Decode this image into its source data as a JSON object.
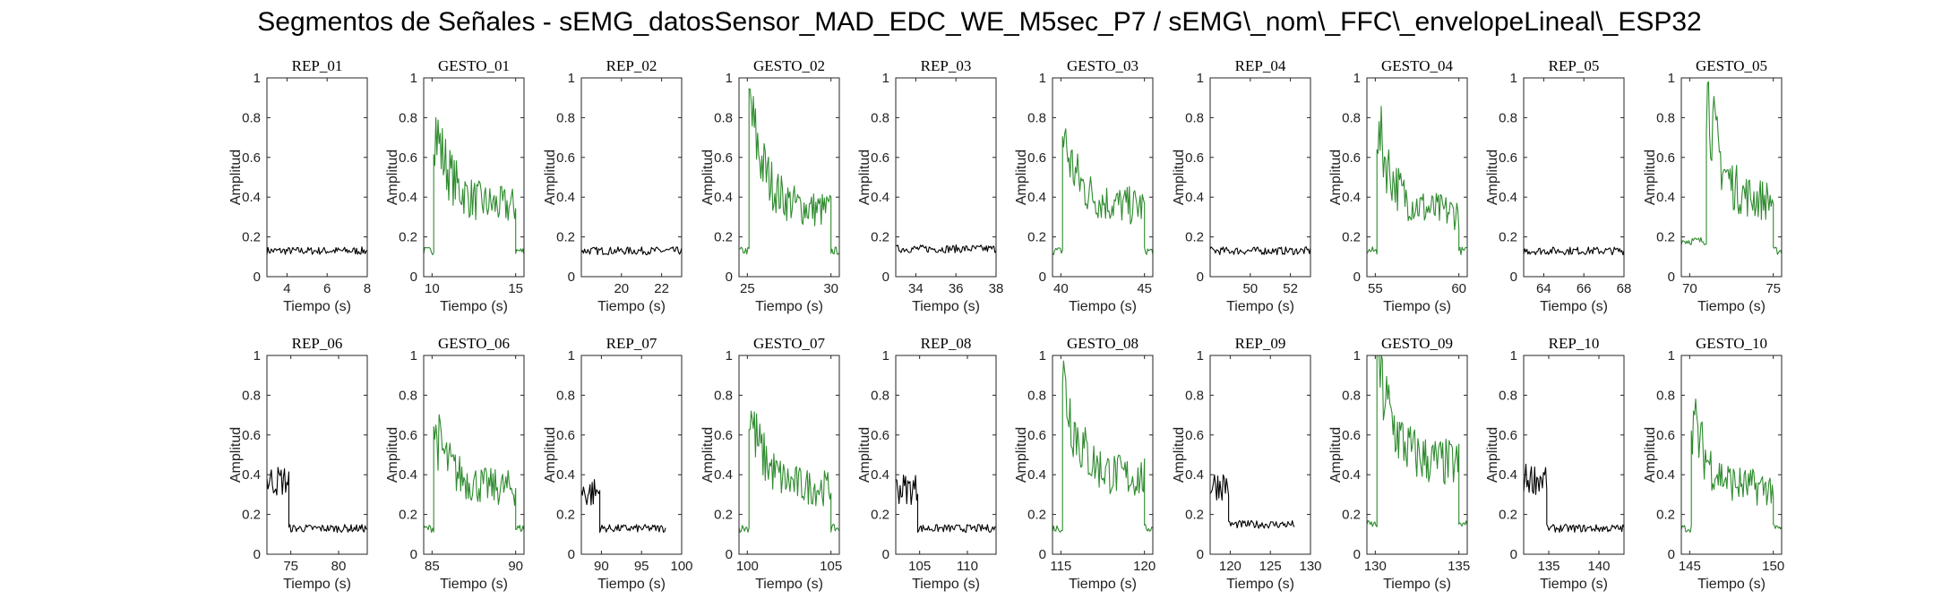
{
  "figure_title": "Segmentos de Señales - sEMG_datosSensor_MAD_EDC_WE_M5sec_P7 / sEMG\\_nom\\_FFC\\_envelopeLineal\\_ESP32",
  "colors": {
    "rest": "#000000",
    "gesture": "#2e8b2e",
    "axes": "#262626"
  },
  "chart_data": [
    {
      "type": "line",
      "title": "REP_01",
      "xlabel": "Tiempo (s)",
      "ylabel": "Amplitud",
      "xlim": [
        3,
        8
      ],
      "ylim": [
        0,
        1
      ],
      "xticks": [
        4,
        6,
        8
      ],
      "yticks": [
        0,
        0.2,
        0.4,
        0.6,
        0.8,
        1
      ],
      "series": [
        {
          "kind": "rest",
          "segments": [
            {
              "t0": 3,
              "t1": 8,
              "level": 0.13
            }
          ]
        }
      ]
    },
    {
      "type": "line",
      "title": "GESTO_01",
      "xlabel": "Tiempo (s)",
      "ylabel": "Amplitud",
      "xlim": [
        9.5,
        15.5
      ],
      "ylim": [
        0,
        1
      ],
      "xticks": [
        10,
        15
      ],
      "yticks": [
        0,
        0.2,
        0.4,
        0.6,
        0.8,
        1
      ],
      "series": [
        {
          "kind": "gesture",
          "segments": [
            {
              "t0": 9.5,
              "t1": 10.1,
              "level": 0.13
            },
            {
              "t0": 10.1,
              "t1": 15,
              "level": 0.35,
              "peak": 0.8
            },
            {
              "t0": 15,
              "t1": 15.5,
              "level": 0.13
            }
          ]
        }
      ]
    },
    {
      "type": "line",
      "title": "REP_02",
      "xlabel": "Tiempo (s)",
      "ylabel": "Amplitud",
      "xlim": [
        18,
        23
      ],
      "ylim": [
        0,
        1
      ],
      "xticks": [
        20,
        22
      ],
      "yticks": [
        0,
        0.2,
        0.4,
        0.6,
        0.8,
        1
      ],
      "series": [
        {
          "kind": "rest",
          "segments": [
            {
              "t0": 18,
              "t1": 23,
              "level": 0.13
            }
          ]
        }
      ]
    },
    {
      "type": "line",
      "title": "GESTO_02",
      "xlabel": "Tiempo (s)",
      "ylabel": "Amplitud",
      "xlim": [
        24.5,
        30.5
      ],
      "ylim": [
        0,
        1
      ],
      "xticks": [
        25,
        30
      ],
      "yticks": [
        0,
        0.2,
        0.4,
        0.6,
        0.8,
        1
      ],
      "series": [
        {
          "kind": "gesture",
          "segments": [
            {
              "t0": 24.5,
              "t1": 25.1,
              "level": 0.13
            },
            {
              "t0": 25.1,
              "t1": 30,
              "level": 0.33,
              "peak": 0.88
            },
            {
              "t0": 30,
              "t1": 30.5,
              "level": 0.13
            }
          ]
        }
      ]
    },
    {
      "type": "line",
      "title": "REP_03",
      "xlabel": "Tiempo (s)",
      "ylabel": "Amplitud",
      "xlim": [
        33,
        38
      ],
      "ylim": [
        0,
        1
      ],
      "xticks": [
        34,
        36,
        38
      ],
      "yticks": [
        0,
        0.2,
        0.4,
        0.6,
        0.8,
        1
      ],
      "series": [
        {
          "kind": "rest",
          "segments": [
            {
              "t0": 33,
              "t1": 38,
              "level": 0.14
            }
          ]
        }
      ]
    },
    {
      "type": "line",
      "title": "GESTO_03",
      "xlabel": "Tiempo (s)",
      "ylabel": "Amplitud",
      "xlim": [
        39.5,
        45.5
      ],
      "ylim": [
        0,
        1
      ],
      "xticks": [
        40,
        45
      ],
      "yticks": [
        0,
        0.2,
        0.4,
        0.6,
        0.8,
        1
      ],
      "series": [
        {
          "kind": "gesture",
          "segments": [
            {
              "t0": 39.5,
              "t1": 40.1,
              "level": 0.13
            },
            {
              "t0": 40.1,
              "t1": 45,
              "level": 0.35,
              "peak": 0.72
            },
            {
              "t0": 45,
              "t1": 45.5,
              "level": 0.13
            }
          ]
        }
      ]
    },
    {
      "type": "line",
      "title": "REP_04",
      "xlabel": "Tiempo (s)",
      "ylabel": "Amplitud",
      "xlim": [
        48,
        53
      ],
      "ylim": [
        0,
        1
      ],
      "xticks": [
        50,
        52
      ],
      "yticks": [
        0,
        0.2,
        0.4,
        0.6,
        0.8,
        1
      ],
      "series": [
        {
          "kind": "rest",
          "segments": [
            {
              "t0": 48,
              "t1": 53,
              "level": 0.13
            }
          ]
        }
      ]
    },
    {
      "type": "line",
      "title": "GESTO_04",
      "xlabel": "Tiempo (s)",
      "ylabel": "Amplitud",
      "xlim": [
        54.5,
        60.5
      ],
      "ylim": [
        0,
        1
      ],
      "xticks": [
        55,
        60
      ],
      "yticks": [
        0,
        0.2,
        0.4,
        0.6,
        0.8,
        1
      ],
      "series": [
        {
          "kind": "gesture",
          "segments": [
            {
              "t0": 54.5,
              "t1": 55.1,
              "level": 0.13
            },
            {
              "t0": 55.1,
              "t1": 60,
              "level": 0.32,
              "peak": 0.78
            },
            {
              "t0": 60,
              "t1": 60.5,
              "level": 0.13
            }
          ]
        }
      ]
    },
    {
      "type": "line",
      "title": "REP_05",
      "xlabel": "Tiempo (s)",
      "ylabel": "Amplitud",
      "xlim": [
        63,
        68
      ],
      "ylim": [
        0,
        1
      ],
      "xticks": [
        64,
        66,
        68
      ],
      "yticks": [
        0,
        0.2,
        0.4,
        0.6,
        0.8,
        1
      ],
      "series": [
        {
          "kind": "rest",
          "segments": [
            {
              "t0": 63,
              "t1": 68,
              "level": 0.13
            }
          ]
        }
      ]
    },
    {
      "type": "line",
      "title": "GESTO_05",
      "xlabel": "Tiempo (s)",
      "ylabel": "Amplitud",
      "xlim": [
        69.5,
        75.5
      ],
      "ylim": [
        0,
        1
      ],
      "xticks": [
        70,
        75
      ],
      "yticks": [
        0,
        0.2,
        0.4,
        0.6,
        0.8,
        1
      ],
      "series": [
        {
          "kind": "gesture",
          "segments": [
            {
              "t0": 69.5,
              "t1": 71,
              "level": 0.18
            },
            {
              "t0": 71,
              "t1": 75,
              "level": 0.38,
              "peak": 0.98
            },
            {
              "t0": 75,
              "t1": 75.5,
              "level": 0.13
            }
          ]
        }
      ]
    },
    {
      "type": "line",
      "title": "REP_06",
      "xlabel": "Tiempo (s)",
      "ylabel": "Amplitud",
      "xlim": [
        72.5,
        83
      ],
      "ylim": [
        0,
        1
      ],
      "xticks": [
        75,
        80
      ],
      "yticks": [
        0,
        0.2,
        0.4,
        0.6,
        0.8,
        1
      ],
      "series": [
        {
          "kind": "rest",
          "segments": [
            {
              "t0": 72.5,
              "t1": 74.8,
              "level": 0.37
            },
            {
              "t0": 74.8,
              "t1": 83,
              "level": 0.13
            }
          ]
        }
      ]
    },
    {
      "type": "line",
      "title": "GESTO_06",
      "xlabel": "Tiempo (s)",
      "ylabel": "Amplitud",
      "xlim": [
        84.5,
        90.5
      ],
      "ylim": [
        0,
        1
      ],
      "xticks": [
        85,
        90
      ],
      "yticks": [
        0,
        0.2,
        0.4,
        0.6,
        0.8,
        1
      ],
      "series": [
        {
          "kind": "gesture",
          "segments": [
            {
              "t0": 84.5,
              "t1": 85.1,
              "level": 0.13
            },
            {
              "t0": 85.1,
              "t1": 90,
              "level": 0.33,
              "peak": 0.65
            },
            {
              "t0": 90,
              "t1": 90.5,
              "level": 0.13
            }
          ]
        }
      ]
    },
    {
      "type": "line",
      "title": "REP_07",
      "xlabel": "Tiempo (s)",
      "ylabel": "Amplitud",
      "xlim": [
        87.5,
        100
      ],
      "ylim": [
        0,
        1
      ],
      "xticks": [
        90,
        95,
        100
      ],
      "yticks": [
        0,
        0.2,
        0.4,
        0.6,
        0.8,
        1
      ],
      "series": [
        {
          "kind": "rest",
          "segments": [
            {
              "t0": 87.5,
              "t1": 89.8,
              "level": 0.31
            },
            {
              "t0": 89.8,
              "t1": 98,
              "level": 0.13
            }
          ]
        }
      ]
    },
    {
      "type": "line",
      "title": "GESTO_07",
      "xlabel": "Tiempo (s)",
      "ylabel": "Amplitud",
      "xlim": [
        99.5,
        105.5
      ],
      "ylim": [
        0,
        1
      ],
      "xticks": [
        100,
        105
      ],
      "yticks": [
        0,
        0.2,
        0.4,
        0.6,
        0.8,
        1
      ],
      "series": [
        {
          "kind": "gesture",
          "segments": [
            {
              "t0": 99.5,
              "t1": 100.1,
              "level": 0.13
            },
            {
              "t0": 100.1,
              "t1": 105,
              "level": 0.33,
              "peak": 0.72
            },
            {
              "t0": 105,
              "t1": 105.5,
              "level": 0.13
            }
          ]
        }
      ]
    },
    {
      "type": "line",
      "title": "REP_08",
      "xlabel": "Tiempo (s)",
      "ylabel": "Amplitud",
      "xlim": [
        102.5,
        113
      ],
      "ylim": [
        0,
        1
      ],
      "xticks": [
        105,
        110
      ],
      "yticks": [
        0,
        0.2,
        0.4,
        0.6,
        0.8,
        1
      ],
      "series": [
        {
          "kind": "rest",
          "segments": [
            {
              "t0": 102.5,
              "t1": 104.8,
              "level": 0.33
            },
            {
              "t0": 104.8,
              "t1": 113,
              "level": 0.13
            }
          ]
        }
      ]
    },
    {
      "type": "line",
      "title": "GESTO_08",
      "xlabel": "Tiempo (s)",
      "ylabel": "Amplitud",
      "xlim": [
        114.5,
        120.5
      ],
      "ylim": [
        0,
        1
      ],
      "xticks": [
        115,
        120
      ],
      "yticks": [
        0,
        0.2,
        0.4,
        0.6,
        0.8,
        1
      ],
      "series": [
        {
          "kind": "gesture",
          "segments": [
            {
              "t0": 114.5,
              "t1": 115.1,
              "level": 0.13
            },
            {
              "t0": 115.1,
              "t1": 120,
              "level": 0.38,
              "peak": 0.92
            },
            {
              "t0": 120,
              "t1": 120.5,
              "level": 0.13
            }
          ]
        }
      ]
    },
    {
      "type": "line",
      "title": "REP_09",
      "xlabel": "Tiempo (s)",
      "ylabel": "Amplitud",
      "xlim": [
        117.5,
        130
      ],
      "ylim": [
        0,
        1
      ],
      "xticks": [
        120,
        125,
        130
      ],
      "yticks": [
        0,
        0.2,
        0.4,
        0.6,
        0.8,
        1
      ],
      "series": [
        {
          "kind": "rest",
          "segments": [
            {
              "t0": 117.5,
              "t1": 119.8,
              "level": 0.35
            },
            {
              "t0": 119.8,
              "t1": 128,
              "level": 0.15
            }
          ]
        }
      ]
    },
    {
      "type": "line",
      "title": "GESTO_09",
      "xlabel": "Tiempo (s)",
      "ylabel": "Amplitud",
      "xlim": [
        129.5,
        135.5
      ],
      "ylim": [
        0,
        1
      ],
      "xticks": [
        130,
        135
      ],
      "yticks": [
        0,
        0.2,
        0.4,
        0.6,
        0.8,
        1
      ],
      "series": [
        {
          "kind": "gesture",
          "segments": [
            {
              "t0": 129.5,
              "t1": 130.1,
              "level": 0.15
            },
            {
              "t0": 130.1,
              "t1": 135,
              "level": 0.45,
              "peak": 1.0
            },
            {
              "t0": 135,
              "t1": 135.5,
              "level": 0.15
            }
          ]
        }
      ]
    },
    {
      "type": "line",
      "title": "REP_10",
      "xlabel": "Tiempo (s)",
      "ylabel": "Amplitud",
      "xlim": [
        132.5,
        142.5
      ],
      "ylim": [
        0,
        1
      ],
      "xticks": [
        135,
        140
      ],
      "yticks": [
        0,
        0.2,
        0.4,
        0.6,
        0.8,
        1
      ],
      "series": [
        {
          "kind": "rest",
          "segments": [
            {
              "t0": 132.5,
              "t1": 134.8,
              "level": 0.38
            },
            {
              "t0": 134.8,
              "t1": 142.5,
              "level": 0.13
            }
          ]
        }
      ]
    },
    {
      "type": "line",
      "title": "GESTO_10",
      "xlabel": "Tiempo (s)",
      "ylabel": "Amplitud",
      "xlim": [
        144.5,
        150.5
      ],
      "ylim": [
        0,
        1
      ],
      "xticks": [
        145,
        150
      ],
      "yticks": [
        0,
        0.2,
        0.4,
        0.6,
        0.8,
        1
      ],
      "series": [
        {
          "kind": "gesture",
          "segments": [
            {
              "t0": 144.5,
              "t1": 145.1,
              "level": 0.13
            },
            {
              "t0": 145.1,
              "t1": 150,
              "level": 0.33,
              "peak": 0.72
            },
            {
              "t0": 150,
              "t1": 150.5,
              "level": 0.13
            }
          ]
        }
      ]
    }
  ]
}
